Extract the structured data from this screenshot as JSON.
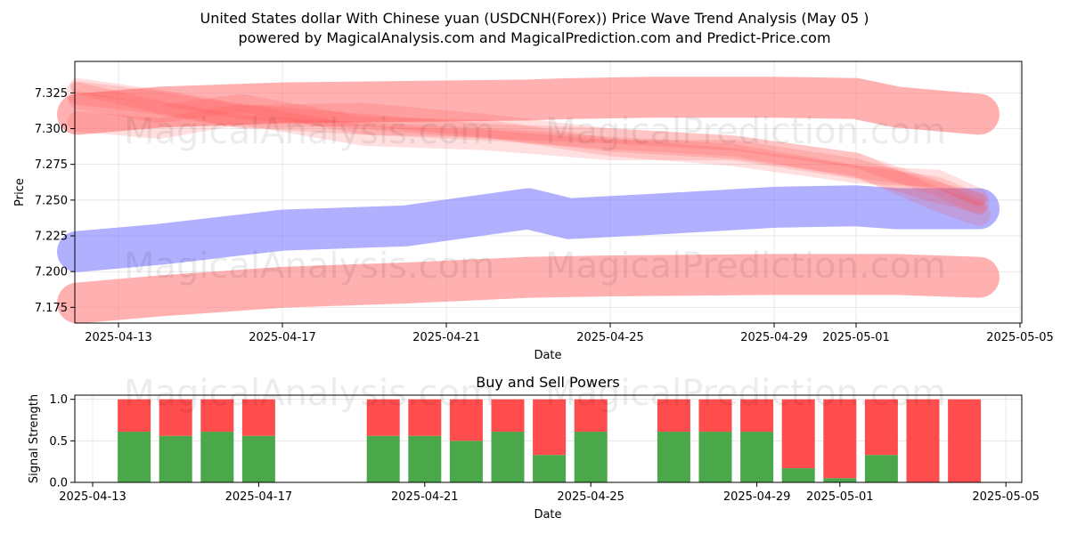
{
  "header": {
    "title_line1": "United States dollar With Chinese yuan (USDCNH(Forex)) Price Wave Trend Analysis (May 05 )",
    "title_line2": "powered by MagicalAnalysis.com and MagicalPrediction.com and Predict-Price.com"
  },
  "watermarks": {
    "left": "MagicalAnalysis.com",
    "right": "MagicalPrediction.com"
  },
  "chart_data": [
    {
      "type": "area",
      "xlabel": "Date",
      "ylabel": "Price",
      "ylim": [
        7.164,
        7.347
      ],
      "x_ticks": [
        "2025-04-13",
        "2025-04-17",
        "2025-04-21",
        "2025-04-25",
        "2025-04-29",
        "2025-05-01",
        "2025-05-05"
      ],
      "y_ticks": [
        "7.175",
        "7.200",
        "7.225",
        "7.250",
        "7.275",
        "7.300",
        "7.325"
      ],
      "grid": true,
      "colors": {
        "upper_band": "#ff8080",
        "lower_band": "#ff8080",
        "center_band": "#8080ff",
        "waves": "#ff4d4d"
      },
      "series": [
        {
          "dates": [
            "2025-04-12",
            "2025-04-14",
            "2025-04-17",
            "2025-04-20",
            "2025-04-23",
            "2025-04-24",
            "2025-04-26",
            "2025-04-29",
            "2025-05-01",
            "2025-05-02",
            "2025-05-04"
          ],
          "values": [
            7.31,
            7.315,
            7.318,
            7.319,
            7.32,
            7.321,
            7.322,
            7.322,
            7.321,
            7.315,
            7.31
          ]
        },
        {
          "dates": [
            "2025-04-12",
            "2025-04-14",
            "2025-04-17",
            "2025-04-20",
            "2025-04-23",
            "2025-04-24",
            "2025-04-26",
            "2025-04-29",
            "2025-05-01",
            "2025-05-02",
            "2025-05-04"
          ],
          "values": [
            7.214,
            7.219,
            7.229,
            7.232,
            7.244,
            7.237,
            7.24,
            7.245,
            7.246,
            7.244,
            7.244
          ]
        },
        {
          "dates": [
            "2025-04-12",
            "2025-04-14",
            "2025-04-17",
            "2025-04-20",
            "2025-04-23",
            "2025-04-25",
            "2025-04-29",
            "2025-05-02",
            "2025-05-04"
          ],
          "values": [
            7.178,
            7.183,
            7.189,
            7.192,
            7.196,
            7.197,
            7.198,
            7.198,
            7.196
          ]
        }
      ],
      "waves": [
        {
          "dates": [
            "2025-04-12",
            "2025-04-14",
            "2025-04-16",
            "2025-04-19",
            "2025-04-22",
            "2025-04-25",
            "2025-04-28",
            "2025-05-01",
            "2025-05-03",
            "2025-05-04"
          ],
          "values": [
            7.328,
            7.315,
            7.305,
            7.3,
            7.296,
            7.29,
            7.285,
            7.27,
            7.262,
            7.25
          ]
        },
        {
          "dates": [
            "2025-04-12",
            "2025-04-14",
            "2025-04-16",
            "2025-04-19",
            "2025-04-22",
            "2025-04-25",
            "2025-04-28",
            "2025-05-01",
            "2025-05-03",
            "2025-05-04"
          ],
          "values": [
            7.33,
            7.322,
            7.312,
            7.305,
            7.298,
            7.295,
            7.29,
            7.278,
            7.258,
            7.245
          ]
        },
        {
          "dates": [
            "2025-04-12",
            "2025-04-14",
            "2025-04-16",
            "2025-04-19",
            "2025-04-22",
            "2025-04-25",
            "2025-04-28",
            "2025-05-01",
            "2025-05-03",
            "2025-05-04"
          ],
          "values": [
            7.32,
            7.31,
            7.318,
            7.302,
            7.3,
            7.287,
            7.28,
            7.268,
            7.265,
            7.252
          ]
        },
        {
          "dates": [
            "2025-04-12",
            "2025-04-14",
            "2025-04-16",
            "2025-04-19",
            "2025-04-22",
            "2025-04-25",
            "2025-04-28",
            "2025-05-01",
            "2025-05-03",
            "2025-05-04"
          ],
          "values": [
            7.305,
            7.3,
            7.31,
            7.295,
            7.292,
            7.285,
            7.285,
            7.272,
            7.255,
            7.248
          ]
        },
        {
          "dates": [
            "2025-04-12",
            "2025-04-14",
            "2025-04-16",
            "2025-04-19",
            "2025-04-22",
            "2025-04-25",
            "2025-04-28",
            "2025-05-01",
            "2025-05-03",
            "2025-05-04"
          ],
          "values": [
            7.325,
            7.318,
            7.308,
            7.31,
            7.302,
            7.292,
            7.287,
            7.275,
            7.25,
            7.24
          ]
        }
      ]
    },
    {
      "type": "bar",
      "title": "Buy and Sell Powers",
      "xlabel": "Date",
      "ylabel": "Signal Strength",
      "ylim": [
        0,
        1.05
      ],
      "x_ticks": [
        "2025-04-13",
        "2025-04-17",
        "2025-04-21",
        "2025-04-25",
        "2025-04-29",
        "2025-05-01",
        "2025-05-05"
      ],
      "y_ticks": [
        "0.0",
        "0.5",
        "1.0"
      ],
      "grid": true,
      "colors": {
        "buy": "#4aa84a",
        "sell": "#ff4d4d"
      },
      "categories": [
        "2025-04-14",
        "2025-04-15",
        "2025-04-16",
        "2025-04-17",
        "2025-04-20",
        "2025-04-21",
        "2025-04-22",
        "2025-04-23",
        "2025-04-24",
        "2025-04-25",
        "2025-04-27",
        "2025-04-28",
        "2025-04-29",
        "2025-04-30",
        "2025-05-01",
        "2025-05-02",
        "2025-05-03",
        "2025-05-04"
      ],
      "series": [
        {
          "values": [
            0.61,
            0.56,
            0.61,
            0.56,
            0.56,
            0.56,
            0.5,
            0.61,
            0.33,
            0.61,
            0.61,
            0.61,
            0.61,
            0.17,
            0.05,
            0.33,
            0.0,
            0.0
          ]
        },
        {
          "values": [
            0.39,
            0.44,
            0.39,
            0.44,
            0.44,
            0.44,
            0.5,
            0.39,
            0.67,
            0.39,
            0.39,
            0.39,
            0.39,
            0.83,
            0.95,
            0.67,
            1.0,
            1.0
          ]
        }
      ]
    }
  ]
}
